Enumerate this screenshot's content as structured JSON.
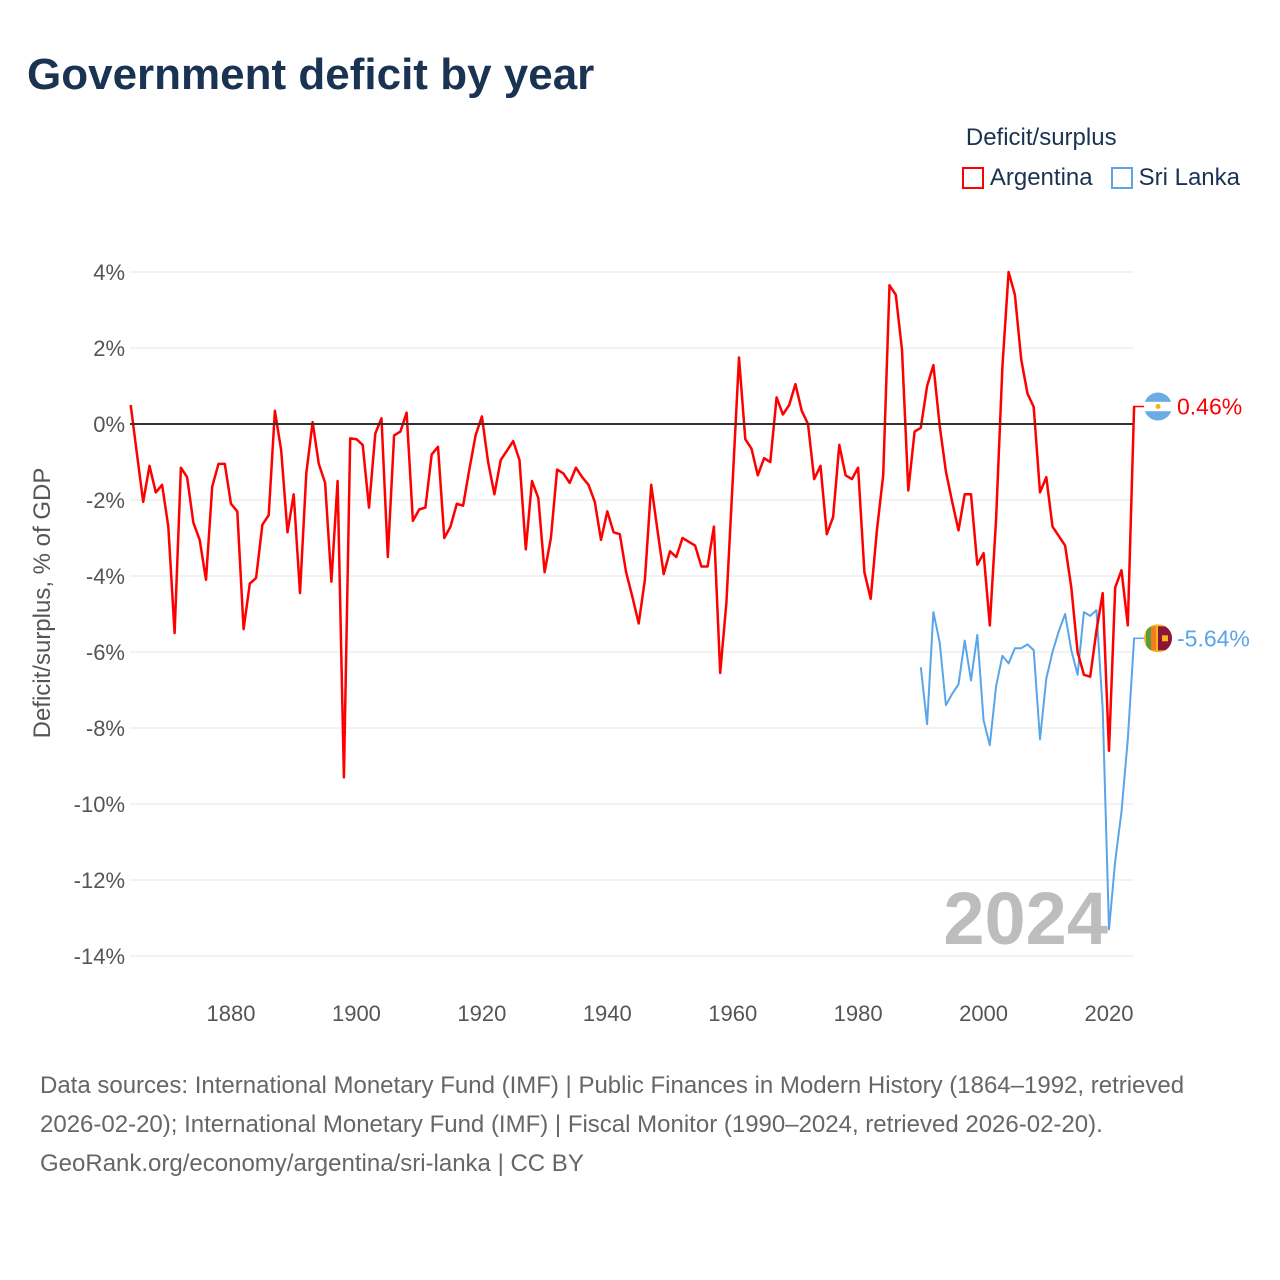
{
  "title": "Government deficit by year",
  "legend": {
    "title": "Deficit/surplus",
    "items": [
      {
        "label": "Argentina",
        "color": "#ff0000"
      },
      {
        "label": "Sri Lanka",
        "color": "#5aa5ea"
      }
    ]
  },
  "footer": {
    "sources": "Data sources: International Monetary Fund (IMF) | Public Finances in Modern History (1864–1992, retrieved 2026-02-20); International Monetary Fund (IMF) | Fiscal Monitor (1990–2024, retrieved 2026-02-20).",
    "link": "GeoRank.org/economy/argentina/sri-lanka | CC BY"
  },
  "chart_data": {
    "type": "line",
    "title": "Government deficit by year",
    "ylabel": "Deficit/surplus, % of GDP",
    "xlabel": "",
    "xlim": [
      1864,
      2024
    ],
    "ylim": [
      -14.5,
      4.2
    ],
    "xticks": [
      1880,
      1900,
      1920,
      1940,
      1960,
      1980,
      2000,
      2020
    ],
    "yticks": [
      4,
      2,
      0,
      -2,
      -4,
      -6,
      -8,
      -10,
      -12,
      -14
    ],
    "ytick_labels": [
      "4%",
      "2%",
      "0%",
      "-2%",
      "-4%",
      "-6%",
      "-8%",
      "-10%",
      "-12%",
      "-14%"
    ],
    "grid": true,
    "year_label": "2024",
    "series": [
      {
        "name": "Argentina",
        "color": "#ff0000",
        "end_label": "0.46%",
        "start": 1864,
        "values": [
          0.5,
          -0.8,
          -2.05,
          -1.1,
          -1.8,
          -1.6,
          -2.7,
          -5.5,
          -1.15,
          -1.4,
          -2.6,
          -3.05,
          -4.1,
          -1.65,
          -1.05,
          -1.05,
          -2.1,
          -2.3,
          -5.4,
          -4.2,
          -4.05,
          -2.65,
          -2.4,
          0.35,
          -0.7,
          -2.85,
          -1.85,
          -4.45,
          -1.3,
          0.05,
          -1.05,
          -1.55,
          -4.15,
          -1.5,
          -9.3,
          -0.38,
          -0.4,
          -0.55,
          -2.2,
          -0.25,
          0.15,
          -3.5,
          -0.3,
          -0.2,
          0.3,
          -2.55,
          -2.25,
          -2.2,
          -0.8,
          -0.6,
          -3.0,
          -2.7,
          -2.1,
          -2.15,
          -1.2,
          -0.3,
          0.2,
          -1.0,
          -1.85,
          -0.95,
          -0.7,
          -0.45,
          -0.95,
          -3.3,
          -1.5,
          -1.95,
          -3.9,
          -3.0,
          -1.2,
          -1.3,
          -1.55,
          -1.15,
          -1.4,
          -1.6,
          -2.05,
          -3.05,
          -2.3,
          -2.85,
          -2.9,
          -3.9,
          -4.55,
          -5.25,
          -4.1,
          -1.6,
          -2.8,
          -3.95,
          -3.35,
          -3.5,
          -3.0,
          -3.1,
          -3.2,
          -3.75,
          -3.75,
          -2.7,
          -6.55,
          -4.7,
          -1.5,
          1.75,
          -0.4,
          -0.65,
          -1.35,
          -0.9,
          -1.0,
          0.7,
          0.25,
          0.5,
          1.05,
          0.35,
          0.0,
          -1.45,
          -1.1,
          -2.9,
          -2.45,
          -0.55,
          -1.35,
          -1.45,
          -1.15,
          -3.9,
          -4.6,
          -2.8,
          -1.35,
          3.65,
          3.4,
          1.95,
          -1.75,
          -0.2,
          -0.1,
          1.0,
          1.55,
          -0.05,
          -1.25,
          -2.05,
          -2.8,
          -1.85,
          -1.85,
          -3.7,
          -3.4,
          -5.3,
          -2.5,
          1.5,
          4.0,
          3.4,
          1.7,
          0.8,
          0.45,
          -1.8,
          -1.4,
          -2.7,
          -2.95,
          -3.2,
          -4.3,
          -6.0,
          -6.6,
          -6.65,
          -5.45,
          -4.45,
          -8.6,
          -4.3,
          -3.85,
          -5.3,
          0.46
        ]
      },
      {
        "name": "Sri Lanka",
        "color": "#5aa5ea",
        "end_label": "-5.64%",
        "start": 1990,
        "values": [
          -6.4,
          -7.9,
          -4.95,
          -5.75,
          -7.4,
          -7.1,
          -6.85,
          -5.7,
          -6.75,
          -5.55,
          -7.8,
          -8.45,
          -6.9,
          -6.1,
          -6.3,
          -5.9,
          -5.9,
          -5.8,
          -5.95,
          -8.3,
          -6.7,
          -6.0,
          -5.45,
          -5.0,
          -5.95,
          -6.6,
          -4.95,
          -5.05,
          -4.9,
          -7.5,
          -13.3,
          -11.5,
          -10.2,
          -8.3,
          -5.64
        ]
      }
    ]
  }
}
